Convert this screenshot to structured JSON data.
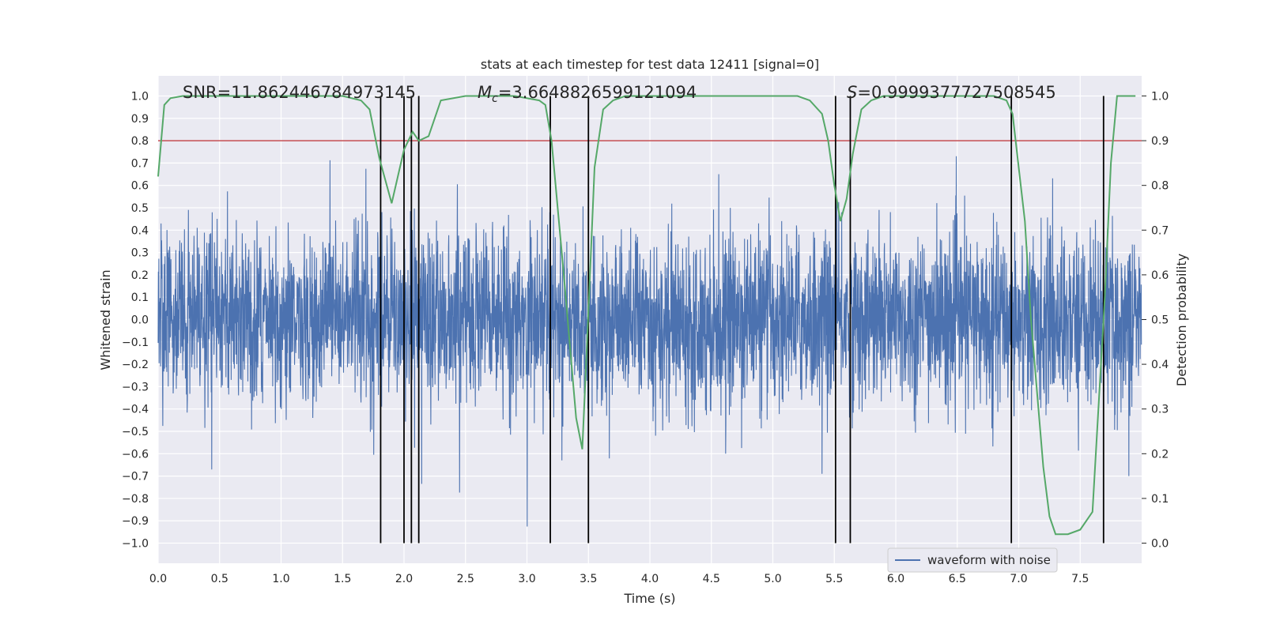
{
  "chart_data": {
    "type": "line",
    "title": "stats at each timestep for test data 12411 [signal=0]",
    "xlabel": "Time (s)",
    "ylabel_left": "Whitened strain",
    "ylabel_right": "Detection probability",
    "xlim": [
      0,
      8
    ],
    "ylim_left": [
      -1.09,
      1.09
    ],
    "ylim_right": [
      -0.045,
      1.045
    ],
    "x_ticks": [
      "0.0",
      "0.5",
      "1.0",
      "1.5",
      "2.0",
      "2.5",
      "3.0",
      "3.5",
      "4.0",
      "4.5",
      "5.0",
      "5.5",
      "6.0",
      "6.5",
      "7.0",
      "7.5"
    ],
    "x_tick_values": [
      0,
      0.5,
      1,
      1.5,
      2,
      2.5,
      3,
      3.5,
      4,
      4.5,
      5,
      5.5,
      6,
      6.5,
      7,
      7.5
    ],
    "y_left_ticks": [
      "1.0",
      "0.9",
      "0.8",
      "0.7",
      "0.6",
      "0.5",
      "0.4",
      "0.3",
      "0.2",
      "0.1",
      "0.0",
      "−0.1",
      "−0.2",
      "−0.3",
      "−0.4",
      "−0.5",
      "−0.6",
      "−0.7",
      "−0.8",
      "−0.9",
      "−1.0"
    ],
    "y_left_tick_values": [
      1,
      0.9,
      0.8,
      0.7,
      0.6,
      0.5,
      0.4,
      0.3,
      0.2,
      0.1,
      0,
      -0.1,
      -0.2,
      -0.3,
      -0.4,
      -0.5,
      -0.6,
      -0.7,
      -0.8,
      -0.9,
      -1
    ],
    "y_right_ticks": [
      "1.0",
      "0.9",
      "0.8",
      "0.7",
      "0.6",
      "0.5",
      "0.4",
      "0.3",
      "0.2",
      "0.1",
      "0.0"
    ],
    "y_right_tick_values": [
      1,
      0.9,
      0.8,
      0.7,
      0.6,
      0.5,
      0.4,
      0.3,
      0.2,
      0.1,
      0
    ],
    "annotations": {
      "snr": "SNR=11.862446784973145",
      "mc_symbol": "M",
      "mc_sub": "c",
      "mc_value": "=3.6648826599121094",
      "s_symbol": "S",
      "s_value": "=0.9999377727508545"
    },
    "threshold": {
      "value": 0.8,
      "axis": "left",
      "color": "#c44e52"
    },
    "vlines": [
      1.81,
      2.0,
      2.06,
      2.12,
      3.19,
      3.5,
      5.51,
      5.63,
      6.94,
      7.69
    ],
    "vline_color": "#000000",
    "legend": {
      "label": "waveform with noise",
      "position": "lower-right"
    },
    "series": [
      {
        "name": "waveform with noise",
        "axis": "left",
        "color": "#4c72b0",
        "noise_model": {
          "samples": 4000,
          "typical_amplitude": 0.42,
          "peak_amplitude": 1.0
        }
      },
      {
        "name": "detection probability",
        "axis": "right",
        "color": "#55a868",
        "x": [
          0,
          0.05,
          0.1,
          0.2,
          0.5,
          1.0,
          1.5,
          1.65,
          1.72,
          1.8,
          1.9,
          1.95,
          2.0,
          2.07,
          2.12,
          2.2,
          2.3,
          2.5,
          2.9,
          3.1,
          3.15,
          3.2,
          3.3,
          3.4,
          3.45,
          3.5,
          3.55,
          3.62,
          3.7,
          3.8,
          4.0,
          4.5,
          4.7,
          5.0,
          5.2,
          5.3,
          5.4,
          5.45,
          5.5,
          5.55,
          5.6,
          5.65,
          5.72,
          5.8,
          5.9,
          6.0,
          6.5,
          6.8,
          6.9,
          6.95,
          7.05,
          7.1,
          7.2,
          7.25,
          7.3,
          7.4,
          7.5,
          7.6,
          7.7,
          7.75,
          7.8,
          7.95
        ],
        "y": [
          0.82,
          0.98,
          0.995,
          1.0,
          1.0,
          1.0,
          1.0,
          0.99,
          0.97,
          0.86,
          0.76,
          0.82,
          0.88,
          0.92,
          0.9,
          0.91,
          0.99,
          1.0,
          1.0,
          0.99,
          0.98,
          0.9,
          0.6,
          0.28,
          0.21,
          0.52,
          0.84,
          0.97,
          0.99,
          1.0,
          1.0,
          1.0,
          1.0,
          1.0,
          1.0,
          0.99,
          0.96,
          0.9,
          0.8,
          0.72,
          0.77,
          0.87,
          0.97,
          0.99,
          1.0,
          1.0,
          1.0,
          1.0,
          0.99,
          0.96,
          0.72,
          0.5,
          0.17,
          0.06,
          0.02,
          0.02,
          0.03,
          0.07,
          0.55,
          0.85,
          1.0,
          1.0
        ]
      }
    ]
  }
}
